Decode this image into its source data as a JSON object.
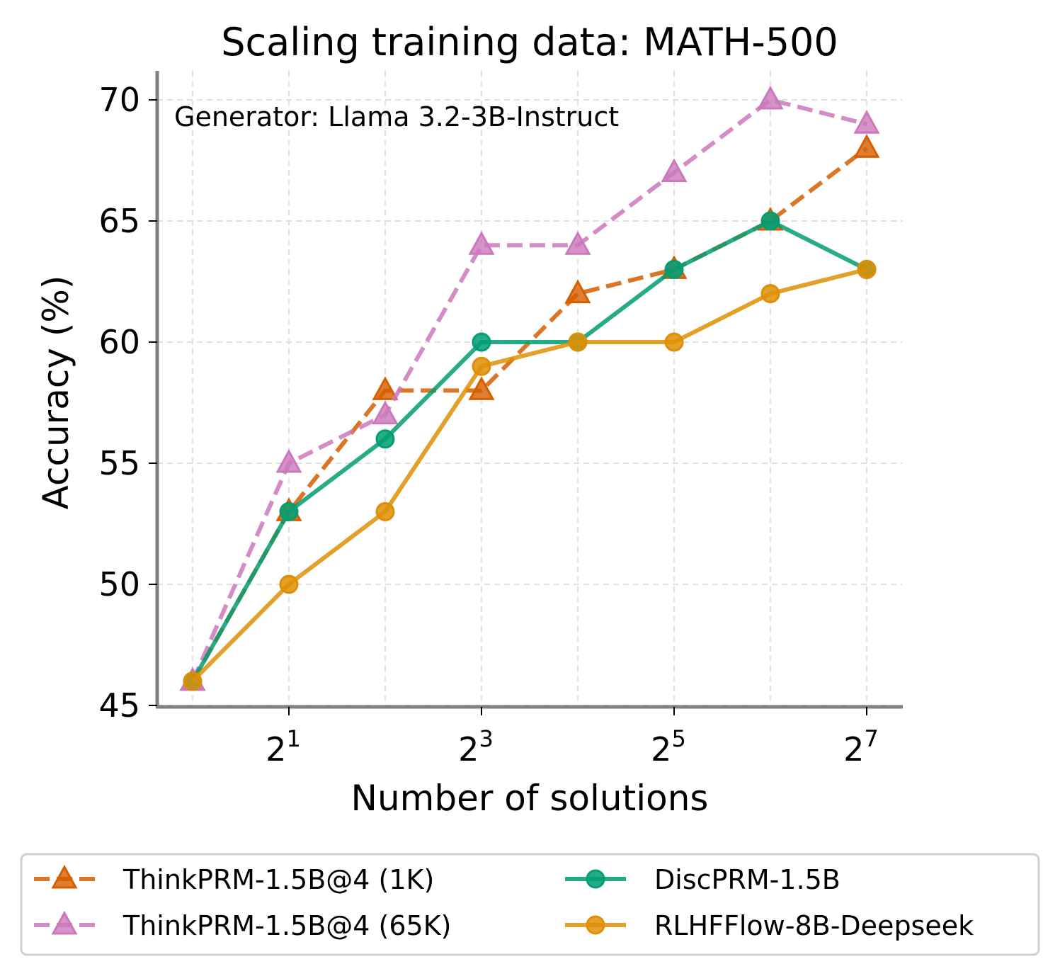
{
  "chart_data": {
    "type": "line",
    "title": "Scaling training data: MATH-500",
    "annotation": "Generator: Llama 3.2-3B-Instruct",
    "xlabel": "Number of solutions",
    "ylabel": "Accuracy (%)",
    "x_scale": "log2",
    "x": [
      1,
      2,
      4,
      8,
      16,
      32,
      64,
      128
    ],
    "x_ticks": [
      {
        "base": "2",
        "exp": "1",
        "value": 2
      },
      {
        "base": "2",
        "exp": "3",
        "value": 8
      },
      {
        "base": "2",
        "exp": "5",
        "value": 32
      },
      {
        "base": "2",
        "exp": "7",
        "value": 128
      }
    ],
    "y_ticks": [
      "45",
      "50",
      "55",
      "60",
      "65",
      "70"
    ],
    "ylim": [
      45,
      71.3
    ],
    "grid": true,
    "legend_placement": "bottom",
    "series": [
      {
        "name": "ThinkPRM-1.5B@4 (1K)",
        "values": [
          46,
          53,
          58,
          58,
          62,
          63,
          65,
          68
        ],
        "color": "#d55e00",
        "dash": true,
        "marker": "triangle"
      },
      {
        "name": "ThinkPRM-1.5B@4 (65K)",
        "values": [
          46,
          55,
          57,
          64,
          64,
          67,
          70,
          69
        ],
        "color": "#cc78bc",
        "dash": true,
        "marker": "triangle"
      },
      {
        "name": "DiscPRM-1.5B",
        "values": [
          46,
          53,
          56,
          60,
          60,
          63,
          65,
          63
        ],
        "color": "#029e73",
        "dash": false,
        "marker": "circle"
      },
      {
        "name": "RLHFFlow-8B-Deepseek",
        "values": [
          46,
          50,
          53,
          59,
          60,
          60,
          62,
          63
        ],
        "color": "#de8f05",
        "dash": false,
        "marker": "circle"
      }
    ]
  }
}
